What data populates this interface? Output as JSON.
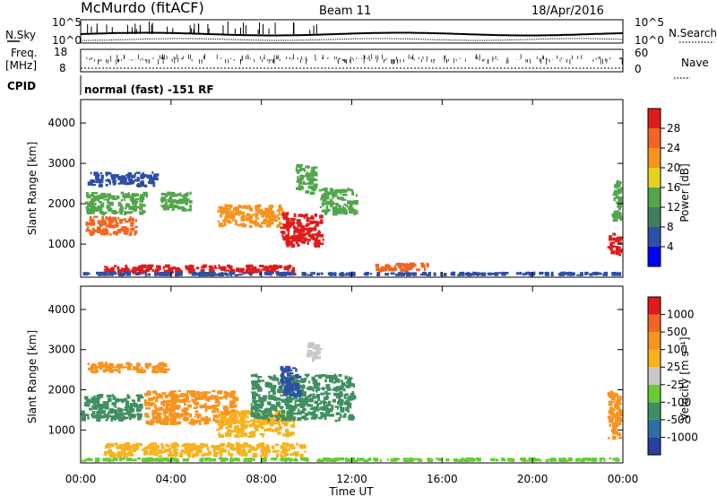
{
  "header": {
    "station": "McMurdo (fitACF)",
    "beam": "Beam 11",
    "date": "18/Apr/2016"
  },
  "top_panels": {
    "nsky_label": "N.Sky",
    "nsky_ticks": [
      "10^5",
      "10^0"
    ],
    "nsearch_label": "N.Search",
    "nsearch_ticks": [
      "10^5",
      "10^0"
    ],
    "freq_label_line1": "Freq.",
    "freq_label_line2": "[MHz]",
    "freq_ticks": [
      "18",
      "8"
    ],
    "nave_label": "Nave",
    "nave_ticks": [
      "60",
      "0"
    ],
    "cpid_label": "CPID",
    "cpid_text": "normal (fast) -151 RF"
  },
  "chart_data": [
    {
      "type": "heatmap",
      "name": "power",
      "ylabel": "Slant Range [km]",
      "yticks": [
        "4000",
        "3000",
        "2000",
        "1000"
      ],
      "ytick_values": [
        4000,
        3000,
        2000,
        1000
      ],
      "ylim": [
        180,
        4580
      ],
      "xlim": [
        0,
        24
      ],
      "colorbar_label": "Power [dB]",
      "colorbar_ticks": [
        "28",
        "24",
        "20",
        "16",
        "12",
        "8",
        "4"
      ],
      "colorbar_values": [
        28,
        24,
        20,
        16,
        12,
        8,
        4
      ],
      "colorbar_range": [
        0,
        32
      ],
      "colorbar_colors": [
        "#0000ff",
        "#2e4fa6",
        "#3f7f60",
        "#52a64c",
        "#e6d21e",
        "#f7931e",
        "#f26522",
        "#e01b1b"
      ],
      "blobs": [
        {
          "x": [
            0.2,
            2.6
          ],
          "y": [
            1200,
            1700
          ],
          "color": "#f26522"
        },
        {
          "x": [
            0.2,
            3.0
          ],
          "y": [
            1700,
            2300
          ],
          "color": "#52a64c"
        },
        {
          "x": [
            0.3,
            3.5
          ],
          "y": [
            2400,
            2800
          ],
          "color": "#2e4fa6"
        },
        {
          "x": [
            3.5,
            5.0
          ],
          "y": [
            1800,
            2300
          ],
          "color": "#52a64c"
        },
        {
          "x": [
            6.0,
            9.0
          ],
          "y": [
            1400,
            2000
          ],
          "color": "#f7931e"
        },
        {
          "x": [
            8.8,
            10.8
          ],
          "y": [
            900,
            1800
          ],
          "color": "#e01b1b"
        },
        {
          "x": [
            9.5,
            10.5
          ],
          "y": [
            2200,
            3000
          ],
          "color": "#52a64c"
        },
        {
          "x": [
            10.5,
            12.3
          ],
          "y": [
            1700,
            2400
          ],
          "color": "#52a64c"
        },
        {
          "x": [
            1.0,
            9.5
          ],
          "y": [
            250,
            500
          ],
          "color": "#e01b1b"
        },
        {
          "x": [
            13.0,
            15.5
          ],
          "y": [
            300,
            550
          ],
          "color": "#f26522"
        },
        {
          "x": [
            23.3,
            24.0
          ],
          "y": [
            700,
            1300
          ],
          "color": "#e01b1b"
        },
        {
          "x": [
            23.5,
            24.0
          ],
          "y": [
            1500,
            2600
          ],
          "color": "#52a64c"
        },
        {
          "x": [
            0.0,
            24.0
          ],
          "y": [
            200,
            320
          ],
          "color": "#2e4fa6"
        }
      ]
    },
    {
      "type": "heatmap",
      "name": "velocity",
      "ylabel": "Slant Range [km]",
      "yticks": [
        "4000",
        "3000",
        "2000",
        "1000"
      ],
      "ytick_values": [
        4000,
        3000,
        2000,
        1000
      ],
      "ylim": [
        180,
        4580
      ],
      "xlim": [
        0,
        24
      ],
      "colorbar_label": "Velocity [m s⁻¹]",
      "colorbar_ticks": [
        "1000",
        "500",
        "100",
        "25",
        "-25",
        "-100",
        "-500",
        "-1000"
      ],
      "colorbar_colors": [
        "#2a3f9e",
        "#2e6fa6",
        "#3f8f60",
        "#66cc33",
        "#c8c8c8",
        "#f7b21e",
        "#f7931e",
        "#f26522",
        "#e01b1b"
      ],
      "blobs": [
        {
          "x": [
            0.2,
            4.0
          ],
          "y": [
            2400,
            2700
          ],
          "color": "#f7931e"
        },
        {
          "x": [
            0.0,
            2.8
          ],
          "y": [
            1200,
            1900
          ],
          "color": "#3f8f60"
        },
        {
          "x": [
            2.8,
            7.0
          ],
          "y": [
            1100,
            2000
          ],
          "color": "#f7931e"
        },
        {
          "x": [
            6.0,
            9.5
          ],
          "y": [
            800,
            1500
          ],
          "color": "#f7b21e"
        },
        {
          "x": [
            7.5,
            12.2
          ],
          "y": [
            1200,
            2400
          ],
          "color": "#3f8f60"
        },
        {
          "x": [
            8.8,
            9.8
          ],
          "y": [
            1800,
            2600
          ],
          "color": "#2e4fa6"
        },
        {
          "x": [
            10.0,
            10.7
          ],
          "y": [
            2700,
            3200
          ],
          "color": "#c8c8c8"
        },
        {
          "x": [
            1.0,
            10.0
          ],
          "y": [
            300,
            700
          ],
          "color": "#f7b21e"
        },
        {
          "x": [
            23.3,
            24.0
          ],
          "y": [
            700,
            2000
          ],
          "color": "#f7931e"
        },
        {
          "x": [
            0.0,
            24.0
          ],
          "y": [
            200,
            320
          ],
          "color": "#66cc33"
        }
      ]
    }
  ],
  "x_axis": {
    "ticks": [
      "00:00",
      "04:00",
      "08:00",
      "12:00",
      "16:00",
      "20:00",
      "00:00"
    ],
    "label": "Time UT"
  }
}
